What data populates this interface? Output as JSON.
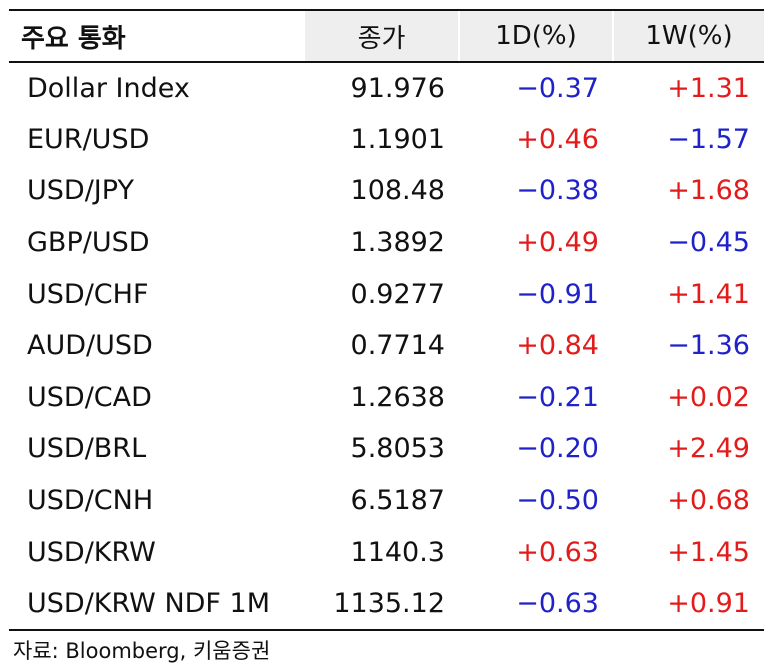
{
  "table": {
    "headers": [
      "주요 통화",
      "종가",
      "1D(%)",
      "1W(%)"
    ],
    "rows": [
      {
        "name": "Dollar Index",
        "close": "91.976",
        "d1": "−0.37",
        "w1": "+1.31"
      },
      {
        "name": "EUR/USD",
        "close": "1.1901",
        "d1": "+0.46",
        "w1": "−1.57"
      },
      {
        "name": "USD/JPY",
        "close": "108.48",
        "d1": "−0.38",
        "w1": "+1.68"
      },
      {
        "name": "GBP/USD",
        "close": "1.3892",
        "d1": "+0.49",
        "w1": "−0.45"
      },
      {
        "name": "USD/CHF",
        "close": "0.9277",
        "d1": "−0.91",
        "w1": "+1.41"
      },
      {
        "name": "AUD/USD",
        "close": "0.7714",
        "d1": "+0.84",
        "w1": "−1.36"
      },
      {
        "name": "USD/CAD",
        "close": "1.2638",
        "d1": "−0.21",
        "w1": "+0.02"
      },
      {
        "name": "USD/BRL",
        "close": "5.8053",
        "d1": "−0.20",
        "w1": "+2.49"
      },
      {
        "name": "USD/CNH",
        "close": "6.5187",
        "d1": "−0.50",
        "w1": "+0.68"
      },
      {
        "name": "USD/KRW",
        "close": "1140.3",
        "d1": "+0.63",
        "w1": "+1.45"
      },
      {
        "name": "USD/KRW NDF 1M",
        "close": "1135.12",
        "d1": "−0.63",
        "w1": "+0.91"
      }
    ]
  },
  "source": "자료: Bloomberg, 키움증권",
  "colors": {
    "positive": "#e21b1b",
    "negative": "#1f22c8",
    "header_bg": "#eeeeee"
  }
}
